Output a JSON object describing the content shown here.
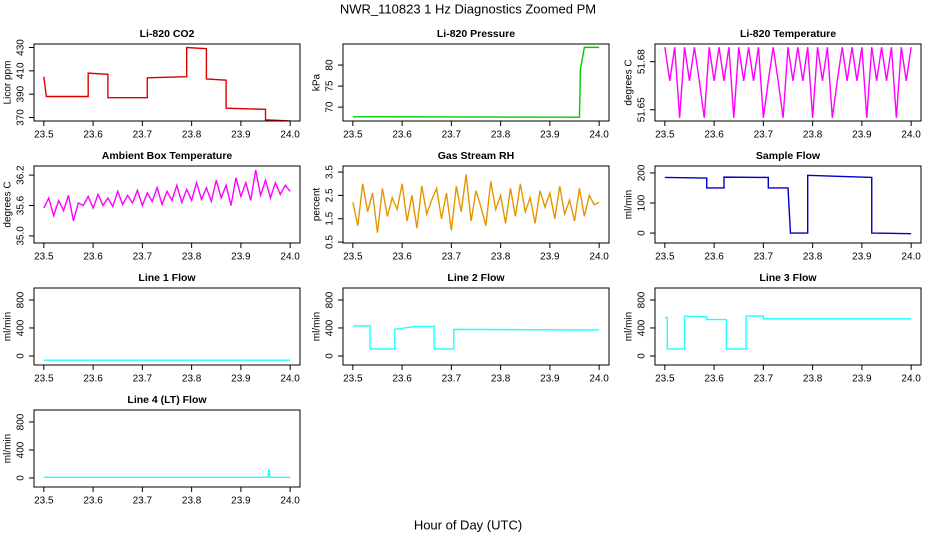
{
  "title": "NWR_110823  1 Hz Diagnostics Zoomed PM",
  "xlabel": "Hour of Day (UTC)",
  "chart_data": [
    {
      "type": "line",
      "title": "Li-820 CO2",
      "ylabel": "Licor ppm",
      "xlim": [
        23.48,
        24.02
      ],
      "xticks": [
        23.5,
        23.6,
        23.7,
        23.8,
        23.9,
        {
          "value": 24,
          "label": "24.0"
        }
      ],
      "ylim": [
        367,
        433
      ],
      "yticks": [
        370,
        390,
        410,
        430
      ],
      "series": [
        {
          "color": "#dd0000",
          "x": [
            23.5,
            23.505,
            23.59,
            23.59,
            23.63,
            23.63,
            23.71,
            23.71,
            23.79,
            23.79,
            23.83,
            23.83,
            23.87,
            23.87,
            23.95,
            23.95,
            24.0
          ],
          "values": [
            405,
            388,
            388,
            408,
            407,
            387,
            387,
            404,
            405,
            430,
            429,
            403,
            402,
            378,
            377,
            368,
            367
          ]
        }
      ]
    },
    {
      "type": "line",
      "title": "Li-820 Pressure",
      "ylabel": "kPa",
      "xlim": [
        23.48,
        24.02
      ],
      "xticks": [
        23.5,
        23.6,
        23.7,
        23.8,
        23.9,
        {
          "value": 24,
          "label": "24.0"
        }
      ],
      "ylim": [
        66.7,
        85
      ],
      "yticks": [
        70,
        75,
        80
      ],
      "series": [
        {
          "color": "#00cc00",
          "x": [
            23.5,
            23.96,
            23.962,
            23.97,
            24.0
          ],
          "values": [
            67.7,
            67.6,
            79,
            84.2,
            84.2
          ]
        }
      ]
    },
    {
      "type": "line",
      "title": "Li-820 Temperature",
      "ylabel": "degrees C",
      "xlim": [
        23.48,
        24.02
      ],
      "xticks": [
        23.5,
        23.6,
        23.7,
        23.8,
        23.9,
        {
          "value": 24,
          "label": "24.0"
        }
      ],
      "ylim": [
        51.643,
        51.691
      ],
      "yticks": [
        51.65,
        51.68
      ],
      "series": [
        {
          "color": "#ff00ff",
          "x": [
            23.5,
            23.51,
            23.52,
            23.53,
            23.54,
            23.55,
            23.56,
            23.57,
            23.58,
            23.59,
            23.6,
            23.61,
            23.62,
            23.63,
            23.64,
            23.65,
            23.66,
            23.67,
            23.68,
            23.69,
            23.7,
            23.71,
            23.72,
            23.73,
            23.74,
            23.75,
            23.76,
            23.77,
            23.78,
            23.79,
            23.8,
            23.81,
            23.82,
            23.83,
            23.84,
            23.85,
            23.86,
            23.87,
            23.88,
            23.89,
            23.9,
            23.91,
            23.92,
            23.93,
            23.94,
            23.95,
            23.96,
            23.97,
            23.98,
            23.99,
            24.0
          ],
          "values": [
            51.689,
            51.668,
            51.689,
            51.645,
            51.689,
            51.668,
            51.689,
            51.668,
            51.645,
            51.689,
            51.668,
            51.689,
            51.668,
            51.689,
            51.645,
            51.689,
            51.668,
            51.689,
            51.668,
            51.689,
            51.645,
            51.668,
            51.689,
            51.668,
            51.645,
            51.689,
            51.668,
            51.689,
            51.668,
            51.689,
            51.645,
            51.689,
            51.668,
            51.689,
            51.645,
            51.668,
            51.689,
            51.668,
            51.689,
            51.668,
            51.689,
            51.645,
            51.689,
            51.668,
            51.689,
            51.668,
            51.689,
            51.645,
            51.689,
            51.668,
            51.689
          ]
        }
      ]
    },
    {
      "type": "line",
      "title": "Ambient Box Temperature",
      "ylabel": "degrees C",
      "xlim": [
        23.48,
        24.02
      ],
      "xticks": [
        23.5,
        23.6,
        23.7,
        23.8,
        23.9,
        {
          "value": 24,
          "label": "24.0"
        }
      ],
      "ylim": [
        34.86,
        36.38
      ],
      "yticks": [
        {
          "value": 35,
          "label": "35.0"
        },
        35.6,
        36.2
      ],
      "series": [
        {
          "color": "#ff00ff",
          "x": [
            23.5,
            23.51,
            23.52,
            23.53,
            23.54,
            23.55,
            23.56,
            23.57,
            23.58,
            23.59,
            23.6,
            23.61,
            23.62,
            23.63,
            23.64,
            23.65,
            23.66,
            23.67,
            23.68,
            23.69,
            23.7,
            23.71,
            23.72,
            23.73,
            23.74,
            23.75,
            23.76,
            23.77,
            23.78,
            23.79,
            23.8,
            23.81,
            23.82,
            23.83,
            23.84,
            23.85,
            23.86,
            23.87,
            23.88,
            23.89,
            23.9,
            23.91,
            23.92,
            23.93,
            23.94,
            23.95,
            23.96,
            23.97,
            23.98,
            23.99,
            24.0
          ],
          "values": [
            35.55,
            35.75,
            35.4,
            35.7,
            35.5,
            35.8,
            35.3,
            35.65,
            35.6,
            35.78,
            35.55,
            35.82,
            35.6,
            35.75,
            35.58,
            35.88,
            35.62,
            35.8,
            35.65,
            35.9,
            35.6,
            35.85,
            35.68,
            35.95,
            35.62,
            35.88,
            35.7,
            36.0,
            35.66,
            35.92,
            35.7,
            36.05,
            35.72,
            35.95,
            35.68,
            36.1,
            35.75,
            36.0,
            35.6,
            36.15,
            35.78,
            36.05,
            35.7,
            36.3,
            35.8,
            36.1,
            35.75,
            36.05,
            35.82,
            36.0,
            35.88
          ]
        }
      ]
    },
    {
      "type": "line",
      "title": "Gas Stream RH",
      "ylabel": "percent",
      "xlim": [
        23.48,
        24.02
      ],
      "xticks": [
        23.5,
        23.6,
        23.7,
        23.8,
        23.9,
        {
          "value": 24,
          "label": "24.0"
        }
      ],
      "ylim": [
        0.46,
        3.76
      ],
      "yticks": [
        0.5,
        1.5,
        2.5,
        3.5
      ],
      "series": [
        {
          "color": "#e69500",
          "x": [
            23.5,
            23.51,
            23.52,
            23.53,
            23.54,
            23.55,
            23.56,
            23.57,
            23.58,
            23.59,
            23.6,
            23.61,
            23.62,
            23.63,
            23.64,
            23.65,
            23.66,
            23.67,
            23.68,
            23.69,
            23.7,
            23.71,
            23.72,
            23.73,
            23.74,
            23.75,
            23.76,
            23.77,
            23.78,
            23.79,
            23.8,
            23.81,
            23.82,
            23.83,
            23.84,
            23.85,
            23.86,
            23.87,
            23.88,
            23.89,
            23.9,
            23.91,
            23.92,
            23.93,
            23.94,
            23.95,
            23.96,
            23.97,
            23.98,
            23.99,
            24.0
          ],
          "values": [
            2.2,
            1.2,
            3.0,
            1.8,
            2.6,
            0.9,
            2.8,
            1.6,
            2.4,
            1.9,
            3.0,
            1.4,
            2.5,
            1.1,
            2.9,
            1.7,
            2.3,
            2.8,
            1.5,
            2.6,
            1.0,
            2.9,
            1.8,
            3.4,
            1.4,
            2.7,
            2.0,
            1.2,
            3.1,
            1.9,
            2.5,
            1.3,
            2.8,
            1.6,
            3.0,
            1.8,
            2.4,
            1.3,
            2.7,
            2.0,
            2.6,
            1.5,
            2.9,
            1.7,
            2.3,
            1.4,
            2.8,
            1.6,
            2.5,
            2.1,
            2.2
          ]
        }
      ]
    },
    {
      "type": "line",
      "title": "Sample Flow",
      "ylabel": "ml/min",
      "xlim": [
        23.48,
        24.02
      ],
      "xticks": [
        23.5,
        23.6,
        23.7,
        23.8,
        23.9,
        {
          "value": 24,
          "label": "24.0"
        }
      ],
      "ylim": [
        -33,
        223
      ],
      "yticks": [
        0,
        100,
        200
      ],
      "series": [
        {
          "color": "#0000cc",
          "x": [
            23.5,
            23.585,
            23.585,
            23.62,
            23.62,
            23.71,
            23.71,
            23.75,
            23.755,
            23.79,
            23.79,
            23.92,
            23.92,
            24.0
          ],
          "values": [
            185,
            183,
            150,
            150,
            186,
            185,
            150,
            150,
            0,
            0,
            192,
            185,
            0,
            -2
          ]
        }
      ]
    },
    {
      "type": "line",
      "title": "Line 1 Flow",
      "ylabel": "ml/min",
      "xlim": [
        23.48,
        24.02
      ],
      "xticks": [
        23.5,
        23.6,
        23.7,
        23.8,
        23.9,
        {
          "value": 24,
          "label": "24.0"
        }
      ],
      "ylim": [
        -129,
        971
      ],
      "yticks": [
        0,
        400,
        800
      ],
      "series": [
        {
          "color": "#22ffff",
          "x": [
            23.5,
            24.0
          ],
          "values": [
            -60,
            -60
          ]
        }
      ]
    },
    {
      "type": "line",
      "title": "Line 2 Flow",
      "ylabel": "ml/min",
      "xlim": [
        23.48,
        24.02
      ],
      "xticks": [
        23.5,
        23.6,
        23.7,
        23.8,
        23.9,
        {
          "value": 24,
          "label": "24.0"
        }
      ],
      "ylim": [
        -129,
        971
      ],
      "yticks": [
        0,
        400,
        800
      ],
      "series": [
        {
          "color": "#22ffff",
          "x": [
            23.5,
            23.535,
            23.535,
            23.585,
            23.585,
            23.625,
            23.625,
            23.665,
            23.665,
            23.705,
            23.705,
            24.0
          ],
          "values": [
            430,
            430,
            100,
            100,
            380,
            420,
            420,
            420,
            100,
            100,
            380,
            370
          ]
        }
      ]
    },
    {
      "type": "line",
      "title": "Line 3 Flow",
      "ylabel": "ml/min",
      "xlim": [
        23.48,
        24.02
      ],
      "xticks": [
        23.5,
        23.6,
        23.7,
        23.8,
        23.9,
        {
          "value": 24,
          "label": "24.0"
        }
      ],
      "ylim": [
        -129,
        971
      ],
      "yticks": [
        0,
        400,
        800
      ],
      "series": [
        {
          "color": "#22ffff",
          "x": [
            23.5,
            23.505,
            23.505,
            23.54,
            23.54,
            23.585,
            23.585,
            23.625,
            23.625,
            23.665,
            23.665,
            23.7,
            23.7,
            24.0
          ],
          "values": [
            550,
            550,
            100,
            100,
            570,
            560,
            520,
            520,
            100,
            100,
            570,
            570,
            530,
            530
          ]
        }
      ]
    },
    {
      "type": "line",
      "title": "Line 4 (LT) Flow",
      "ylabel": "ml/min",
      "xlim": [
        23.48,
        24.02
      ],
      "xticks": [
        23.5,
        23.6,
        23.7,
        23.8,
        23.9,
        {
          "value": 24,
          "label": "24.0"
        }
      ],
      "ylim": [
        -129,
        971
      ],
      "yticks": [
        0,
        400,
        800
      ],
      "series": [
        {
          "color": "#22ffff",
          "x": [
            23.5,
            23.955,
            23.957,
            23.959,
            24.0
          ],
          "values": [
            10,
            10,
            130,
            10,
            10
          ]
        }
      ]
    }
  ]
}
